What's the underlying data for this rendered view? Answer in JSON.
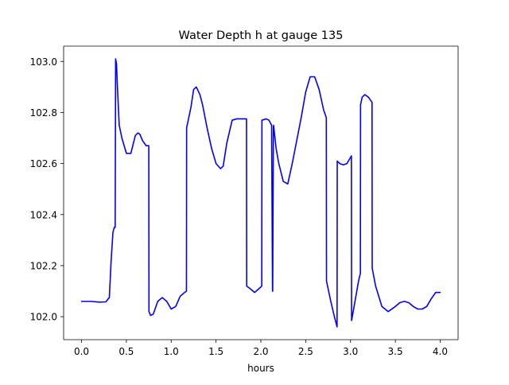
{
  "chart_data": {
    "type": "line",
    "title": "Water Depth h at gauge 135",
    "xlabel": "hours",
    "ylabel": "",
    "xlim": [
      -0.2,
      4.2
    ],
    "ylim": [
      101.91,
      103.06
    ],
    "xticks": [
      0.0,
      0.5,
      1.0,
      1.5,
      2.0,
      2.5,
      3.0,
      3.5,
      4.0
    ],
    "xtick_labels": [
      "0.0",
      "0.5",
      "1.0",
      "1.5",
      "2.0",
      "2.5",
      "3.0",
      "3.5",
      "4.0"
    ],
    "yticks": [
      102.0,
      102.2,
      102.4,
      102.6,
      102.8,
      103.0
    ],
    "ytick_labels": [
      "102.0",
      "102.2",
      "102.4",
      "102.6",
      "102.8",
      "103.0"
    ],
    "grid": false,
    "legend": "none",
    "series": [
      {
        "color": "#0000ff",
        "x": [
          0.0,
          0.1,
          0.2,
          0.27,
          0.31,
          0.33,
          0.35,
          0.365,
          0.375,
          0.38,
          0.39,
          0.4,
          0.42,
          0.45,
          0.5,
          0.55,
          0.6,
          0.63,
          0.65,
          0.68,
          0.72,
          0.75,
          0.752,
          0.77,
          0.8,
          0.85,
          0.9,
          0.95,
          1.0,
          1.05,
          1.1,
          1.15,
          1.17,
          1.172,
          1.22,
          1.25,
          1.28,
          1.32,
          1.35,
          1.4,
          1.45,
          1.5,
          1.55,
          1.58,
          1.62,
          1.68,
          1.73,
          1.78,
          1.83,
          1.84,
          1.842,
          1.88,
          1.93,
          1.98,
          2.01,
          2.012,
          2.06,
          2.09,
          2.12,
          2.13,
          2.132,
          2.14,
          2.142,
          2.17,
          2.2,
          2.25,
          2.3,
          2.35,
          2.4,
          2.45,
          2.5,
          2.55,
          2.6,
          2.65,
          2.7,
          2.73,
          2.732,
          2.78,
          2.82,
          2.85,
          2.852,
          2.88,
          2.92,
          2.96,
          3.01,
          3.012,
          3.05,
          3.09,
          3.11,
          3.112,
          3.13,
          3.16,
          3.2,
          3.24,
          3.242,
          3.28,
          3.35,
          3.42,
          3.5,
          3.55,
          3.6,
          3.65,
          3.7,
          3.75,
          3.8,
          3.85,
          3.9,
          3.95,
          4.0
        ],
        "y": [
          102.06,
          102.06,
          102.057,
          102.058,
          102.075,
          102.22,
          102.33,
          102.35,
          102.35,
          103.01,
          102.99,
          102.9,
          102.75,
          102.7,
          102.64,
          102.64,
          102.71,
          102.72,
          102.715,
          102.69,
          102.67,
          102.67,
          102.02,
          102.005,
          102.01,
          102.06,
          102.075,
          102.06,
          102.03,
          102.04,
          102.08,
          102.095,
          102.1,
          102.74,
          102.82,
          102.89,
          102.9,
          102.87,
          102.83,
          102.74,
          102.66,
          102.6,
          102.58,
          102.59,
          102.68,
          102.77,
          102.775,
          102.775,
          102.775,
          102.775,
          102.12,
          102.11,
          102.095,
          102.11,
          102.12,
          102.77,
          102.775,
          102.77,
          102.75,
          102.1,
          102.1,
          102.74,
          102.75,
          102.66,
          102.6,
          102.53,
          102.52,
          102.6,
          102.69,
          102.78,
          102.88,
          102.94,
          102.94,
          102.89,
          102.81,
          102.78,
          102.14,
          102.06,
          102.0,
          101.96,
          102.61,
          102.6,
          102.595,
          102.6,
          102.63,
          101.985,
          102.06,
          102.14,
          102.17,
          102.83,
          102.86,
          102.87,
          102.86,
          102.84,
          102.19,
          102.12,
          102.04,
          102.02,
          102.04,
          102.055,
          102.06,
          102.055,
          102.04,
          102.03,
          102.03,
          102.04,
          102.07,
          102.095,
          102.095
        ]
      }
    ]
  }
}
